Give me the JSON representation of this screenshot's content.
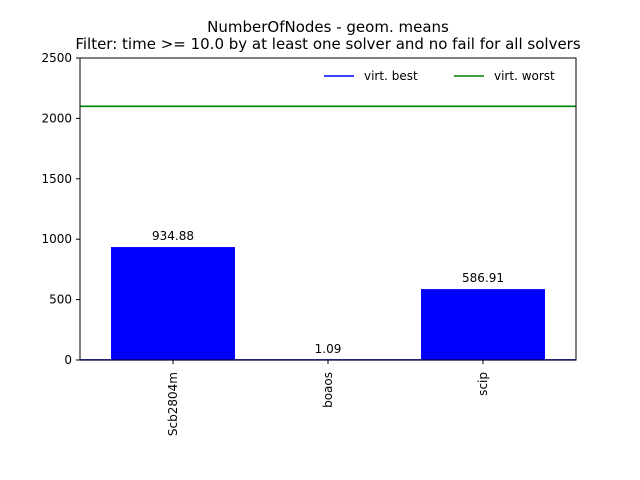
{
  "chart_data": {
    "type": "bar",
    "title": "NumberOfNodes - geom. means",
    "subtitle": "Filter: time >= 10.0 by at least one solver and no fail for all solvers",
    "xlabel": "",
    "ylabel": "",
    "categories": [
      "Scb2804m",
      "boaos",
      "scip"
    ],
    "values": [
      934.88,
      1.09,
      586.91
    ],
    "value_labels": [
      "934.88",
      "1.09",
      "586.91"
    ],
    "ylim": [
      0,
      2500
    ],
    "yticks": [
      0,
      500,
      1000,
      1500,
      2000,
      2500
    ],
    "bar_color": "#0000ff",
    "grid": false,
    "legend_position": "top-right",
    "reference_lines": [
      {
        "name": "virt. best",
        "value": 1.09,
        "color": "#0000ff"
      },
      {
        "name": "virt. worst",
        "value": 2100,
        "color": "#008000"
      }
    ]
  }
}
